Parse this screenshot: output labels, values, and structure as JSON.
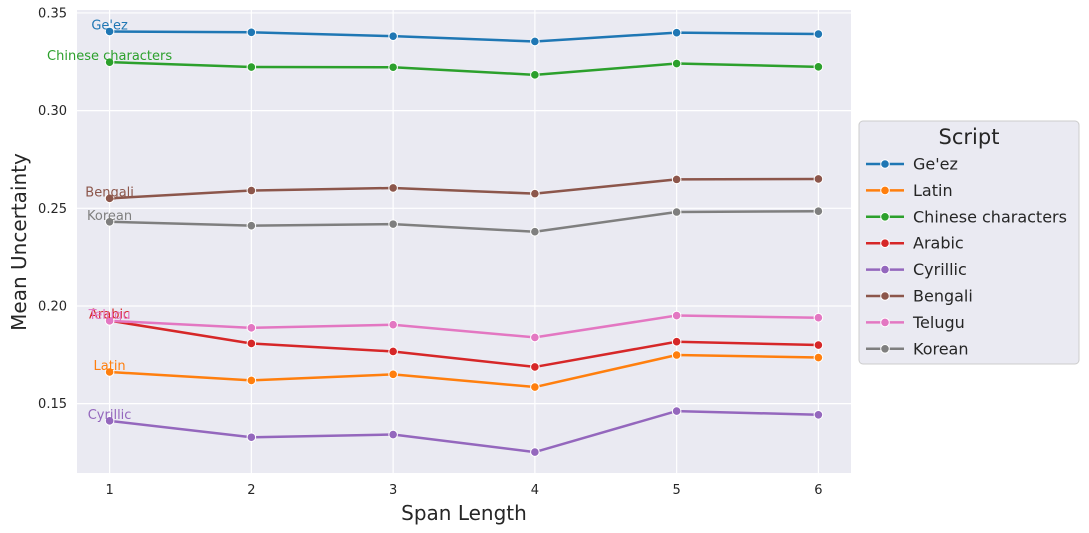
{
  "chart_data": {
    "type": "line",
    "xlabel": "Span Length",
    "ylabel": "Mean Uncertainty",
    "x": [
      1,
      2,
      3,
      4,
      5,
      6
    ],
    "xlim": [
      0.77,
      6.23
    ],
    "ylim": [
      0.1145,
      0.3515
    ],
    "yticks": [
      0.15,
      0.2,
      0.25,
      0.3,
      0.35
    ],
    "ytick_labels": [
      "0.15",
      "0.20",
      "0.25",
      "0.30",
      "0.35"
    ],
    "xtick_labels": [
      "1",
      "2",
      "3",
      "4",
      "5",
      "6"
    ],
    "grid": true,
    "legend": {
      "title": "Script",
      "placement": "center-right-outside"
    },
    "series": [
      {
        "name": "Ge'ez",
        "color": "#1f77b4",
        "values": [
          0.3405,
          0.3401,
          0.3381,
          0.3354,
          0.3399,
          0.3392
        ]
      },
      {
        "name": "Latin",
        "color": "#ff7f0e",
        "values": [
          0.1662,
          0.1619,
          0.165,
          0.1585,
          0.1749,
          0.1736
        ]
      },
      {
        "name": "Chinese characters",
        "color": "#2ca02c",
        "values": [
          0.3248,
          0.3223,
          0.3222,
          0.3183,
          0.3241,
          0.3224
        ]
      },
      {
        "name": "Arabic",
        "color": "#d62728",
        "values": [
          0.1925,
          0.1808,
          0.1767,
          0.1688,
          0.1817,
          0.18
        ]
      },
      {
        "name": "Cyrillic",
        "color": "#9467bd",
        "values": [
          0.1412,
          0.1328,
          0.1342,
          0.1252,
          0.1462,
          0.1443
        ]
      },
      {
        "name": "Bengali",
        "color": "#8c564b",
        "values": [
          0.2551,
          0.2591,
          0.2604,
          0.2575,
          0.2648,
          0.265
        ]
      },
      {
        "name": "Telugu",
        "color": "#e377c2",
        "values": [
          0.1924,
          0.1888,
          0.1904,
          0.1839,
          0.1951,
          0.194
        ]
      },
      {
        "name": "Korean",
        "color": "#7f7f7f",
        "values": [
          0.2431,
          0.2411,
          0.2419,
          0.238,
          0.2481,
          0.2485
        ]
      }
    ]
  }
}
